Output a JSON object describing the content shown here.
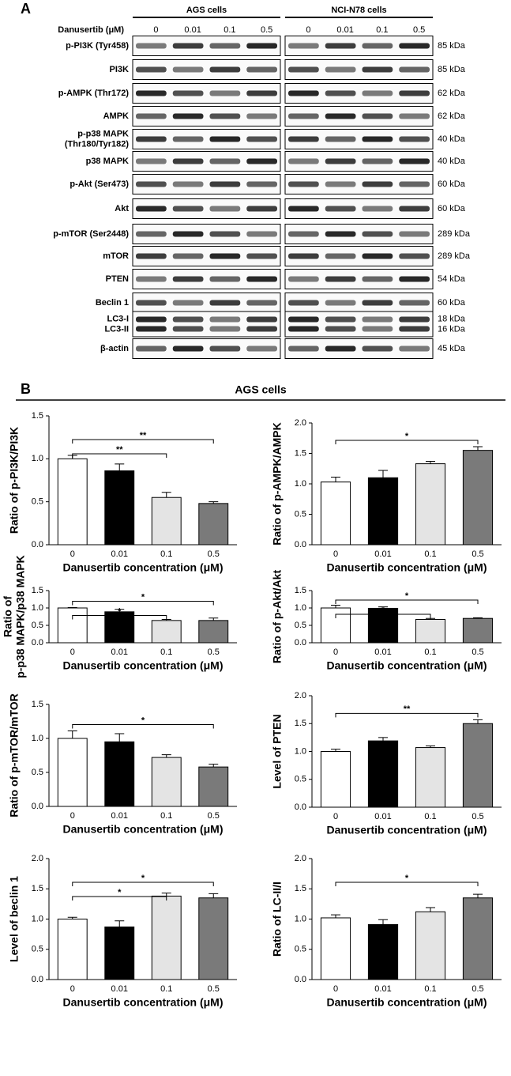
{
  "panel_a": {
    "label": "A",
    "treatment_label": "Danusertib (μM)",
    "groups": [
      {
        "name": "AGS cells",
        "concentrations": [
          "0",
          "0.01",
          "0.1",
          "0.5"
        ]
      },
      {
        "name": "NCI-N78 cells",
        "concentrations": [
          "0",
          "0.01",
          "0.1",
          "0.5"
        ]
      }
    ],
    "rows": [
      {
        "label": "p-PI3K (Tyr458)",
        "kda": "85 kDa"
      },
      {
        "label": "PI3K",
        "kda": "85 kDa"
      },
      {
        "label": "p-AMPK (Thr172)",
        "kda": "62 kDa"
      },
      {
        "label": "AMPK",
        "kda": "62 kDa"
      },
      {
        "label": [
          "p-p38 MAPK",
          "(Thr180/Tyr182)"
        ],
        "kda": "40 kDa"
      },
      {
        "label": "p38 MAPK",
        "kda": "40 kDa"
      },
      {
        "label": "p-Akt (Ser473)",
        "kda": "60 kDa"
      },
      {
        "label": "Akt",
        "kda": "60 kDa"
      },
      {
        "label": "p-mTOR (Ser2448)",
        "kda": "289 kDa"
      },
      {
        "label": "mTOR",
        "kda": "289 kDa"
      },
      {
        "label": "PTEN",
        "kda": "54 kDa"
      },
      {
        "label": "Beclin 1",
        "kda": "60 kDa"
      },
      {
        "label": [
          "LC3-I",
          "LC3-II"
        ],
        "kda": [
          "18 kDa",
          "16 kDa"
        ]
      },
      {
        "label": "β-actin",
        "kda": "45 kDa"
      }
    ]
  },
  "panel_b": {
    "label": "B",
    "title": "AGS cells"
  },
  "chart_data": [
    {
      "type": "bar",
      "ylabel": "Ratio of p-PI3K/PI3K",
      "xlabel": "Danusertib concentration (μM)",
      "categories": [
        "0",
        "0.01",
        "0.1",
        "0.5"
      ],
      "values": [
        1.0,
        0.86,
        0.55,
        0.48
      ],
      "errors": [
        0.04,
        0.08,
        0.06,
        0.02
      ],
      "colors": [
        "#ffffff",
        "#000000",
        "#e4e4e4",
        "#7a7a7a"
      ],
      "ylim": [
        0,
        1.5
      ],
      "yticks": [
        {
          "value": 0,
          "label": "0.0"
        },
        {
          "value": 0.5,
          "label": "0.5"
        },
        {
          "value": 1,
          "label": "1.0"
        },
        {
          "value": 1.5,
          "label": "1.5"
        }
      ],
      "significance": [
        {
          "from": 0,
          "to": 3,
          "label": "**"
        },
        {
          "from": 0,
          "to": 2,
          "label": "**"
        }
      ]
    },
    {
      "type": "bar",
      "ylabel": "Ratio of p-AMPK/AMPK",
      "xlabel": "Danusertib concentration (μM)",
      "categories": [
        "0",
        "0.01",
        "0.1",
        "0.5"
      ],
      "values": [
        1.03,
        1.1,
        1.33,
        1.55
      ],
      "errors": [
        0.08,
        0.12,
        0.04,
        0.06
      ],
      "colors": [
        "#ffffff",
        "#000000",
        "#e4e4e4",
        "#7a7a7a"
      ],
      "ylim": [
        0,
        2
      ],
      "yticks": [
        {
          "value": 0,
          "label": "0.0"
        },
        {
          "value": 0.5,
          "label": "0.5"
        },
        {
          "value": 1,
          "label": "1.0"
        },
        {
          "value": 1.5,
          "label": "1.5"
        },
        {
          "value": 2,
          "label": "2.0"
        }
      ],
      "significance": [
        {
          "from": 0,
          "to": 3,
          "label": "*"
        }
      ]
    },
    {
      "type": "bar",
      "ylabel": [
        "Ratio of",
        "p-p38 MAPK/p38 MAPK"
      ],
      "xlabel": "Danusertib concentration (μM)",
      "categories": [
        "0",
        "0.01",
        "0.1",
        "0.5"
      ],
      "values": [
        1.0,
        0.89,
        0.64,
        0.64
      ],
      "errors": [
        0.01,
        0.07,
        0.03,
        0.07
      ],
      "colors": [
        "#ffffff",
        "#000000",
        "#e4e4e4",
        "#7a7a7a"
      ],
      "ylim": [
        0,
        1.5
      ],
      "yticks": [
        {
          "value": 0,
          "label": "0.0"
        },
        {
          "value": 0.5,
          "label": "0.5"
        },
        {
          "value": 1,
          "label": "1.0"
        },
        {
          "value": 1.5,
          "label": "1.5"
        }
      ],
      "significance": [
        {
          "from": 0,
          "to": 3,
          "label": "*"
        },
        {
          "from": 0,
          "to": 2,
          "label": "*"
        }
      ]
    },
    {
      "type": "bar",
      "ylabel": "Ratio of p-Akt/Akt",
      "xlabel": "Danusertib concentration (μM)",
      "categories": [
        "0",
        "0.01",
        "0.1",
        "0.5"
      ],
      "values": [
        1.0,
        0.99,
        0.67,
        0.7
      ],
      "errors": [
        0.08,
        0.04,
        0.03,
        0.02
      ],
      "colors": [
        "#ffffff",
        "#000000",
        "#e4e4e4",
        "#7a7a7a"
      ],
      "ylim": [
        0,
        1.5
      ],
      "yticks": [
        {
          "value": 0,
          "label": "0.0"
        },
        {
          "value": 0.5,
          "label": "0.5"
        },
        {
          "value": 1,
          "label": "1.0"
        },
        {
          "value": 1.5,
          "label": "1.5"
        }
      ],
      "significance": [
        {
          "from": 0,
          "to": 3,
          "label": "*"
        },
        {
          "from": 0,
          "to": 2,
          "label": "*"
        }
      ]
    },
    {
      "type": "bar",
      "ylabel": "Ratio of p-mTOR/mTOR",
      "xlabel": "Danusertib concentration (μM)",
      "categories": [
        "0",
        "0.01",
        "0.1",
        "0.5"
      ],
      "values": [
        1.0,
        0.95,
        0.72,
        0.58
      ],
      "errors": [
        0.11,
        0.12,
        0.04,
        0.04
      ],
      "colors": [
        "#ffffff",
        "#000000",
        "#e4e4e4",
        "#7a7a7a"
      ],
      "ylim": [
        0,
        1.5
      ],
      "yticks": [
        {
          "value": 0,
          "label": "0.0"
        },
        {
          "value": 0.5,
          "label": "0.5"
        },
        {
          "value": 1,
          "label": "1.0"
        },
        {
          "value": 1.5,
          "label": "1.5"
        }
      ],
      "significance": [
        {
          "from": 0,
          "to": 3,
          "label": "*"
        }
      ]
    },
    {
      "type": "bar",
      "ylabel": "Level of PTEN",
      "xlabel": "Danusertib concentration (μM)",
      "categories": [
        "0",
        "0.01",
        "0.1",
        "0.5"
      ],
      "values": [
        1.0,
        1.19,
        1.07,
        1.5
      ],
      "errors": [
        0.04,
        0.06,
        0.03,
        0.07
      ],
      "colors": [
        "#ffffff",
        "#000000",
        "#e4e4e4",
        "#7a7a7a"
      ],
      "ylim": [
        0,
        2
      ],
      "yticks": [
        {
          "value": 0,
          "label": "0.0"
        },
        {
          "value": 0.5,
          "label": "0.5"
        },
        {
          "value": 1,
          "label": "1.0"
        },
        {
          "value": 1.5,
          "label": "1.5"
        },
        {
          "value": 2,
          "label": "2.0"
        }
      ],
      "significance": [
        {
          "from": 0,
          "to": 3,
          "label": "**"
        }
      ]
    },
    {
      "type": "bar",
      "ylabel": "Level of beclin 1",
      "xlabel": "Danusertib concentration (μM)",
      "categories": [
        "0",
        "0.01",
        "0.1",
        "0.5"
      ],
      "values": [
        1.0,
        0.87,
        1.38,
        1.35
      ],
      "errors": [
        0.03,
        0.1,
        0.05,
        0.07
      ],
      "colors": [
        "#ffffff",
        "#000000",
        "#e4e4e4",
        "#7a7a7a"
      ],
      "ylim": [
        0,
        2
      ],
      "yticks": [
        {
          "value": 0,
          "label": "0.0"
        },
        {
          "value": 0.5,
          "label": "0.5"
        },
        {
          "value": 1,
          "label": "1.0"
        },
        {
          "value": 1.5,
          "label": "1.5"
        },
        {
          "value": 2,
          "label": "2.0"
        }
      ],
      "significance": [
        {
          "from": 0,
          "to": 3,
          "label": "*"
        },
        {
          "from": 0,
          "to": 2,
          "label": "*"
        }
      ]
    },
    {
      "type": "bar",
      "ylabel": "Ratio of LC-II/I",
      "xlabel": "Danusertib concentration (μM)",
      "categories": [
        "0",
        "0.01",
        "0.1",
        "0.5"
      ],
      "values": [
        1.02,
        0.91,
        1.12,
        1.35
      ],
      "errors": [
        0.05,
        0.08,
        0.07,
        0.06
      ],
      "colors": [
        "#ffffff",
        "#000000",
        "#e4e4e4",
        "#7a7a7a"
      ],
      "ylim": [
        0,
        2
      ],
      "yticks": [
        {
          "value": 0,
          "label": "0.0"
        },
        {
          "value": 0.5,
          "label": "0.5"
        },
        {
          "value": 1,
          "label": "1.0"
        },
        {
          "value": 1.5,
          "label": "1.5"
        },
        {
          "value": 2,
          "label": "2.0"
        }
      ],
      "significance": [
        {
          "from": 0,
          "to": 3,
          "label": "*"
        }
      ]
    }
  ]
}
